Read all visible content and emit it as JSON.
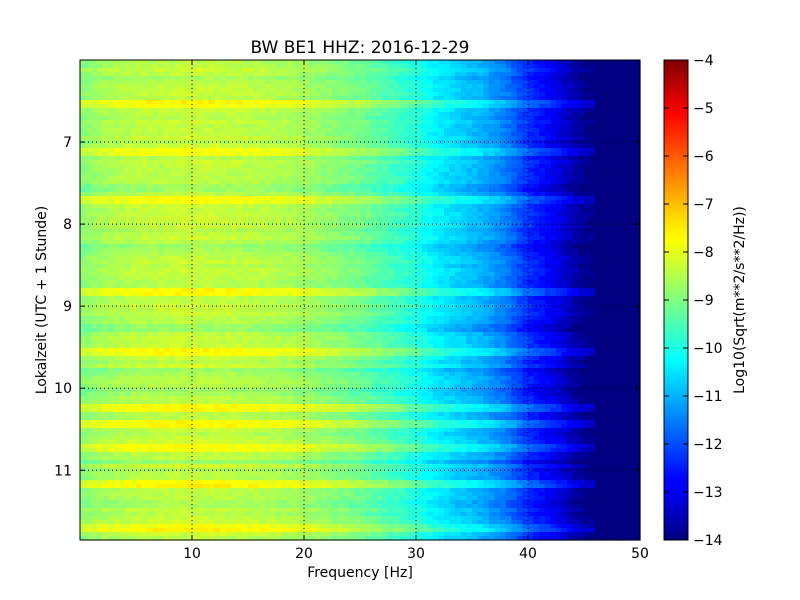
{
  "chart_data": {
    "type": "heatmap",
    "title": "BW BE1 HHZ: 2016-12-29",
    "xlabel": "Frequency [Hz]",
    "ylabel": "Lokalzeit (UTC + 1 Stunde)",
    "colorbar_label": "Log10(Sqrt(m**2/s**2/Hz))",
    "xlim": [
      0,
      50
    ],
    "ylim": [
      6.0,
      11.85
    ],
    "y_inverted": true,
    "x_ticks": [
      10,
      20,
      30,
      40,
      50
    ],
    "y_ticks": [
      7,
      8,
      9,
      10,
      11
    ],
    "colorbar_range": [
      -14,
      -4
    ],
    "colorbar_ticks": [
      -4,
      -5,
      -6,
      -7,
      -8,
      -9,
      -10,
      -11,
      -12,
      -13,
      -14
    ],
    "colormap": "jet",
    "grid": true,
    "frequency_profile": {
      "x": [
        0,
        2,
        5,
        10,
        15,
        20,
        25,
        30,
        32,
        34,
        36,
        38,
        40,
        42,
        43,
        44,
        45,
        46,
        50
      ],
      "value": [
        -8.9,
        -8.6,
        -8.4,
        -8.3,
        -8.4,
        -8.6,
        -9.1,
        -9.9,
        -10.4,
        -10.7,
        -11.0,
        -11.5,
        -12.3,
        -12.8,
        -13.1,
        -13.5,
        -13.8,
        -14.0,
        -14.0
      ]
    },
    "loud_times": [
      6.52,
      7.14,
      7.72,
      8.84,
      9.55,
      10.26,
      10.42,
      10.72,
      11.17,
      11.72
    ],
    "quiet_times": [
      6.22,
      7.55,
      8.28,
      9.28,
      9.82,
      10.05,
      10.9,
      11.42
    ],
    "loud_boost": 0.6,
    "quiet_drop": -0.3
  }
}
